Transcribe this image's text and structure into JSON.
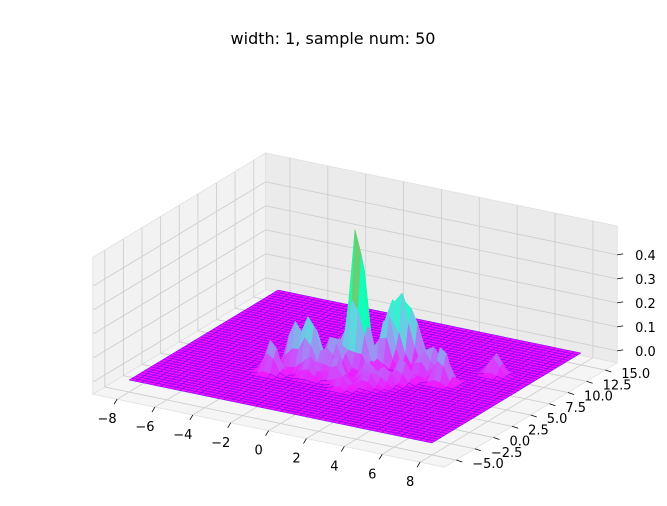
{
  "chart_data": {
    "type": "surface3d",
    "title": "width: 1, sample num: 50",
    "xlabel": "",
    "ylabel": "",
    "zlabel": "",
    "colormap": "rainbow",
    "grid": true,
    "x_ticks": [
      "−8",
      "−6",
      "−4",
      "−2",
      "0",
      "2",
      "4",
      "6",
      "8"
    ],
    "y_ticks": [
      "−5.0",
      "−2.5",
      "0.0",
      "2.5",
      "5.0",
      "7.5",
      "10.0",
      "12.5",
      "15.0"
    ],
    "z_ticks": [
      "0.0",
      "0.1",
      "0.2",
      "0.3",
      "0.4"
    ],
    "xlim": [
      -8,
      8
    ],
    "ylim": [
      -5,
      15
    ],
    "zlim": [
      0,
      0.45
    ],
    "peaks": [
      {
        "x": 0.0,
        "y": 5.0,
        "z": 0.44
      },
      {
        "x": 0.3,
        "y": 5.3,
        "z": 0.28
      },
      {
        "x": 1.6,
        "y": 7.2,
        "z": 0.29
      },
      {
        "x": 1.2,
        "y": 6.2,
        "z": 0.22
      },
      {
        "x": 2.2,
        "y": 7.6,
        "z": 0.18
      },
      {
        "x": 0.9,
        "y": 7.4,
        "z": 0.24
      },
      {
        "x": -2.9,
        "y": 1.2,
        "z": 0.14
      },
      {
        "x": -2.4,
        "y": 3.0,
        "z": 0.19
      },
      {
        "x": -1.6,
        "y": 2.7,
        "z": 0.13
      },
      {
        "x": -1.5,
        "y": 3.2,
        "z": 0.16
      },
      {
        "x": -0.9,
        "y": 4.3,
        "z": 0.13
      },
      {
        "x": -0.3,
        "y": 3.7,
        "z": 0.12
      },
      {
        "x": 0.2,
        "y": 2.0,
        "z": 0.11
      },
      {
        "x": -0.6,
        "y": 3.0,
        "z": 0.1
      },
      {
        "x": 1.4,
        "y": 3.1,
        "z": 0.09
      },
      {
        "x": 3.2,
        "y": 5.7,
        "z": 0.09
      },
      {
        "x": 3.6,
        "y": 6.4,
        "z": 0.12
      },
      {
        "x": 2.8,
        "y": 4.2,
        "z": 0.1
      },
      {
        "x": 2.4,
        "y": 3.0,
        "z": 0.08
      },
      {
        "x": -1.1,
        "y": 1.7,
        "z": 0.09
      },
      {
        "x": 0.6,
        "y": 4.5,
        "z": 0.11
      },
      {
        "x": 4.5,
        "y": 5.5,
        "z": 0.1
      },
      {
        "x": 4.4,
        "y": 5.2,
        "z": 0.07
      },
      {
        "x": 6.0,
        "y": 8.6,
        "z": 0.09
      },
      {
        "x": 1.8,
        "y": 2.1,
        "z": 0.07
      },
      {
        "x": -2.1,
        "y": 4.5,
        "z": 0.08
      },
      {
        "x": 0.9,
        "y": 1.0,
        "z": 0.06
      }
    ]
  }
}
